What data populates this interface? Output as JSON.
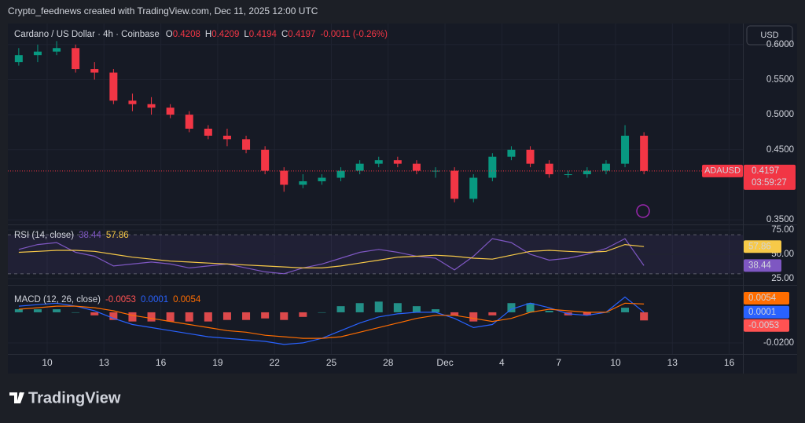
{
  "header": {
    "attribution": "Crypto_feednews created with TradingView.com, Dec 11, 2025 12:00 UTC",
    "currency": "USD",
    "logo": "TradingView"
  },
  "chart_data": [
    {
      "type": "candlestick",
      "title": "Cardano / US Dollar · 4h · Coinbase",
      "symbol": "ADAUSD",
      "countdown": "03:59:27",
      "ohlc_legend": [
        {
          "label": "O",
          "value": 0.4208
        },
        {
          "label": "H",
          "value": 0.4209
        },
        {
          "label": "L",
          "value": 0.4194
        },
        {
          "label": "C",
          "value": 0.4197
        }
      ],
      "change": "-0.0011 (-0.26%)",
      "last_price": 0.4197,
      "x": [
        "2025-11-08",
        "2025-11-09",
        "2025-11-10",
        "2025-11-11",
        "2025-11-12",
        "2025-11-13",
        "2025-11-14",
        "2025-11-15",
        "2025-11-16",
        "2025-11-17",
        "2025-11-18",
        "2025-11-19",
        "2025-11-20",
        "2025-11-21",
        "2025-11-22",
        "2025-11-23",
        "2025-11-24",
        "2025-11-25",
        "2025-11-26",
        "2025-11-27",
        "2025-11-28",
        "2025-11-29",
        "2025-11-30",
        "2025-12-01",
        "2025-12-02",
        "2025-12-03",
        "2025-12-04",
        "2025-12-05",
        "2025-12-06",
        "2025-12-07",
        "2025-12-08",
        "2025-12-09",
        "2025-12-10",
        "2025-12-11"
      ],
      "open": [
        0.575,
        0.585,
        0.59,
        0.595,
        0.565,
        0.56,
        0.52,
        0.515,
        0.51,
        0.5,
        0.48,
        0.47,
        0.465,
        0.45,
        0.42,
        0.4,
        0.405,
        0.41,
        0.42,
        0.43,
        0.435,
        0.43,
        0.42,
        0.42,
        0.38,
        0.41,
        0.44,
        0.45,
        0.43,
        0.415,
        0.415,
        0.42,
        0.43,
        0.47
      ],
      "high": [
        0.595,
        0.6,
        0.605,
        0.6,
        0.575,
        0.565,
        0.53,
        0.525,
        0.515,
        0.505,
        0.485,
        0.48,
        0.47,
        0.455,
        0.425,
        0.415,
        0.415,
        0.425,
        0.435,
        0.44,
        0.44,
        0.435,
        0.425,
        0.425,
        0.415,
        0.445,
        0.455,
        0.455,
        0.435,
        0.42,
        0.425,
        0.435,
        0.485,
        0.475
      ],
      "low": [
        0.57,
        0.575,
        0.585,
        0.56,
        0.55,
        0.515,
        0.505,
        0.5,
        0.495,
        0.475,
        0.465,
        0.455,
        0.445,
        0.415,
        0.39,
        0.395,
        0.4,
        0.405,
        0.415,
        0.425,
        0.425,
        0.415,
        0.41,
        0.375,
        0.375,
        0.405,
        0.435,
        0.425,
        0.41,
        0.41,
        0.41,
        0.415,
        0.425,
        0.415
      ],
      "close": [
        0.585,
        0.59,
        0.595,
        0.565,
        0.56,
        0.52,
        0.515,
        0.51,
        0.5,
        0.48,
        0.47,
        0.465,
        0.45,
        0.42,
        0.4,
        0.405,
        0.41,
        0.42,
        0.43,
        0.435,
        0.43,
        0.42,
        0.42,
        0.38,
        0.41,
        0.44,
        0.45,
        0.43,
        0.415,
        0.415,
        0.42,
        0.43,
        0.47,
        0.4197
      ],
      "up_color": "#089981",
      "down_color": "#f23645",
      "ylim": [
        0.3445,
        0.63
      ],
      "yticks": [
        {
          "value": 0.35,
          "label": "0.3500"
        },
        {
          "value": 0.45,
          "label": "0.4500"
        },
        {
          "value": 0.5,
          "label": "0.5000"
        },
        {
          "value": 0.55,
          "label": "0.5500"
        },
        {
          "value": 0.6,
          "label": "0.6000"
        }
      ],
      "xticks": [
        {
          "value": "2025-11-10",
          "label": "10"
        },
        {
          "value": "2025-11-13",
          "label": "13"
        },
        {
          "value": "2025-11-16",
          "label": "16"
        },
        {
          "value": "2025-11-19",
          "label": "19"
        },
        {
          "value": "2025-11-22",
          "label": "22"
        },
        {
          "value": "2025-11-25",
          "label": "25"
        },
        {
          "value": "2025-11-28",
          "label": "28"
        },
        {
          "value": "2025-12-01",
          "label": "Dec"
        },
        {
          "value": "2025-12-04",
          "label": "4"
        },
        {
          "value": "2025-12-07",
          "label": "7"
        },
        {
          "value": "2025-12-10",
          "label": "10"
        },
        {
          "value": "2025-12-13",
          "label": "13"
        },
        {
          "value": "2025-12-16",
          "label": "16"
        }
      ]
    },
    {
      "type": "line",
      "title": "RSI (14, close)",
      "series": [
        {
          "color": "#7e57c2",
          "values": [
            55,
            60,
            62,
            52,
            48,
            38,
            40,
            42,
            40,
            36,
            38,
            40,
            36,
            32,
            30,
            36,
            40,
            46,
            52,
            55,
            52,
            48,
            46,
            34,
            48,
            66,
            62,
            50,
            44,
            46,
            50,
            56,
            66,
            38.44
          ]
        },
        {
          "color": "#f7c948",
          "values": [
            52,
            53,
            54,
            54,
            53,
            50,
            47,
            45,
            43,
            42,
            41,
            40,
            39,
            38,
            37,
            36,
            36,
            38,
            41,
            44,
            47,
            48,
            49,
            48,
            46,
            45,
            49,
            53,
            54,
            53,
            52,
            53,
            60,
            57.86
          ]
        }
      ],
      "band_color": "#7e57c2",
      "levels": [
        70,
        50,
        30
      ],
      "ylim": [
        19.4,
        79
      ],
      "yticks": [
        {
          "value": 25,
          "label": "25.00"
        },
        {
          "value": 50,
          "label": "50.00"
        },
        {
          "value": 75,
          "label": "75.00"
        }
      ]
    },
    {
      "type": "macd",
      "title": "MACD (12, 26, close)",
      "histogram": {
        "up_color": "#26a69a",
        "down_color": "#ff5252",
        "values": [
          0.002,
          0.002,
          0.002,
          0,
          -0.002,
          -0.005,
          -0.006,
          -0.006,
          -0.006,
          -0.006,
          -0.006,
          -0.005,
          -0.005,
          -0.004,
          -0.005,
          -0.003,
          0,
          0.004,
          0.006,
          0.007,
          0.006,
          0.004,
          0.002,
          -0.002,
          -0.006,
          -0.002,
          0.006,
          0.006,
          0.001,
          -0.002,
          -0.002,
          0,
          0.003,
          -0.0053
        ]
      },
      "series": [
        {
          "color": "#2962ff",
          "values": [
            0.004,
            0.005,
            0.006,
            0.004,
            0.001,
            -0.004,
            -0.008,
            -0.01,
            -0.012,
            -0.014,
            -0.016,
            -0.017,
            -0.018,
            -0.019,
            -0.021,
            -0.02,
            -0.017,
            -0.012,
            -0.007,
            -0.003,
            -0.001,
            0,
            0,
            -0.004,
            -0.01,
            -0.008,
            0.002,
            0.006,
            0.003,
            -0.001,
            -0.002,
            0,
            0.01,
            0.0001
          ]
        },
        {
          "color": "#ff6d00",
          "values": [
            0.002,
            0.003,
            0.004,
            0.004,
            0.003,
            0.001,
            -0.002,
            -0.004,
            -0.006,
            -0.008,
            -0.01,
            -0.012,
            -0.013,
            -0.015,
            -0.016,
            -0.017,
            -0.017,
            -0.016,
            -0.013,
            -0.01,
            -0.007,
            -0.004,
            -0.002,
            -0.002,
            -0.004,
            -0.006,
            -0.004,
            0,
            0.002,
            0.001,
            0,
            0,
            0.006,
            0.0054
          ]
        }
      ],
      "ylim": [
        -0.0267,
        0.0169
      ],
      "yticks": [
        {
          "value": -0.02,
          "label": "-0.0200"
        }
      ]
    }
  ]
}
